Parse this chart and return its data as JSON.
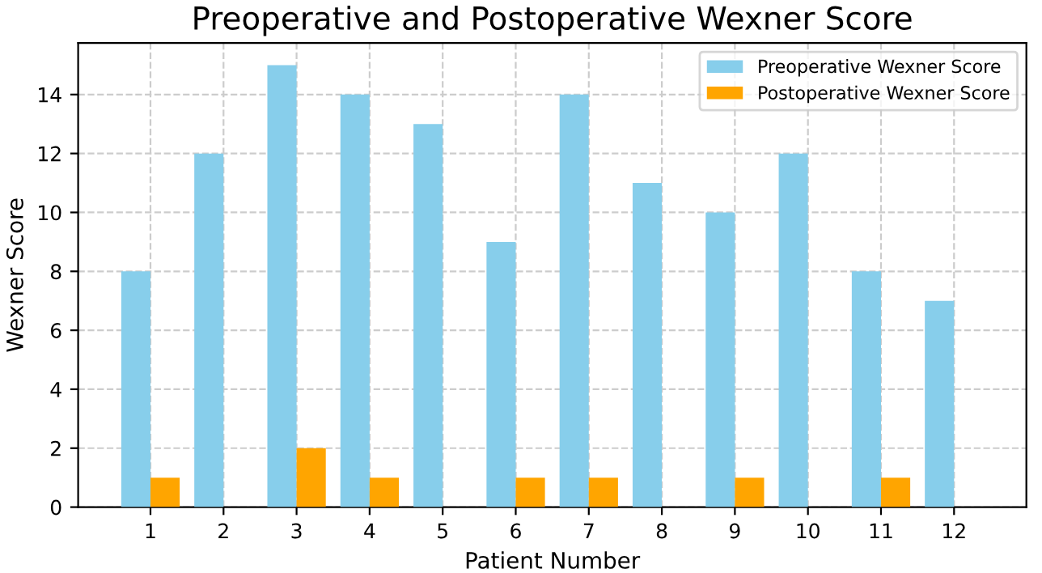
{
  "chart_data": {
    "type": "bar",
    "title": "Preoperative and Postoperative Wexner Score",
    "xlabel": "Patient Number",
    "ylabel": "Wexner Score",
    "categories": [
      "1",
      "2",
      "3",
      "4",
      "5",
      "6",
      "7",
      "8",
      "9",
      "10",
      "11",
      "12"
    ],
    "series": [
      {
        "name": "Preoperative Wexner Score",
        "color": "#87ceeb",
        "values": [
          8,
          12,
          15,
          14,
          13,
          9,
          14,
          11,
          10,
          12,
          8,
          7
        ]
      },
      {
        "name": "Postoperative Wexner Score",
        "color": "#ffa500",
        "values": [
          1,
          0,
          2,
          1,
          0,
          1,
          1,
          0,
          1,
          0,
          1,
          0
        ]
      }
    ],
    "ylim": [
      0,
      15.75
    ],
    "yticks": [
      0,
      2,
      4,
      6,
      8,
      10,
      12,
      14
    ],
    "grid": true,
    "legend": "top right"
  }
}
